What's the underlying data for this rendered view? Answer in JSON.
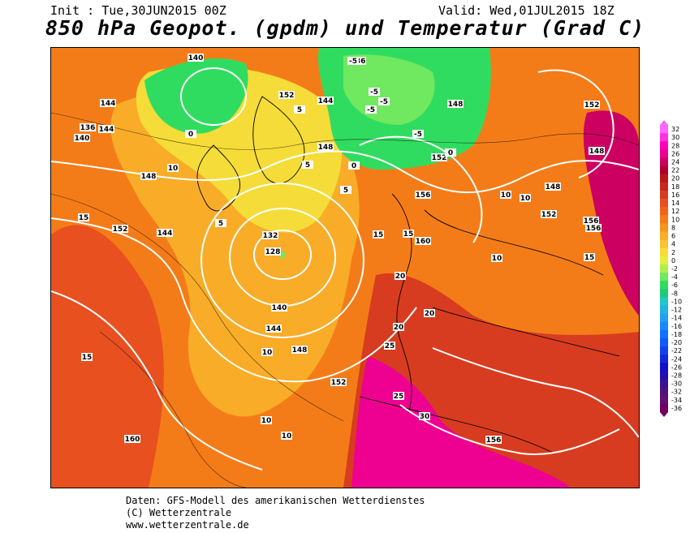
{
  "header": {
    "init": "Init : Tue,30JUN2015 00Z",
    "valid": "Valid: Wed,01JUL2015 18Z",
    "title": "850 hPa Geopot. (gpdm) und Temperatur (Grad C)"
  },
  "credits": {
    "line1": "Daten: GFS-Modell des amerikanischen Wetterdienstes",
    "line2": "(C) Wetterzentrale",
    "line3": "www.wetterzentrale.de"
  },
  "legend": {
    "unit_values": [
      "32",
      "30",
      "28",
      "26",
      "24",
      "22",
      "20",
      "18",
      "16",
      "14",
      "12",
      "10",
      "8",
      "6",
      "4",
      "2",
      "0",
      "-2",
      "-4",
      "-6",
      "-8",
      "-10",
      "-12",
      "-14",
      "-16",
      "-18",
      "-20",
      "-22",
      "-24",
      "-26",
      "-28",
      "-30",
      "-32",
      "-34",
      "-36"
    ],
    "colors": [
      "#ff66ff",
      "#ff33dd",
      "#ff00bb",
      "#ee0090",
      "#cc0060",
      "#b00030",
      "#b81818",
      "#c82820",
      "#d83c20",
      "#e85020",
      "#f06418",
      "#f47c18",
      "#f79420",
      "#f8ac28",
      "#f8c430",
      "#f5dc38",
      "#e6ec40",
      "#b0ee50",
      "#70e860",
      "#30dc60",
      "#20c878",
      "#20c8c8",
      "#20b4e0",
      "#20a0ee",
      "#1888ff",
      "#1070ff",
      "#1058ff",
      "#1040ee",
      "#1028dd",
      "#1010cc",
      "#2010b0",
      "#3a1098",
      "#501080",
      "#601070",
      "#700060"
    ]
  },
  "map_labels": {
    "geopotential": [
      "140",
      "136",
      "144",
      "152",
      "148",
      "144",
      "148",
      "152",
      "156",
      "160",
      "132",
      "128",
      "140",
      "144",
      "148",
      "152",
      "156",
      "160",
      "148",
      "152",
      "156",
      "152",
      "148",
      "144",
      "140",
      "136",
      "144",
      "148",
      "152",
      "156"
    ],
    "temperature": [
      "-5",
      "-5",
      "-5",
      "-5",
      "-5",
      "0",
      "0",
      "0",
      "5",
      "5",
      "5",
      "5",
      "10",
      "10",
      "10",
      "10",
      "15",
      "15",
      "15",
      "20",
      "20",
      "20",
      "25",
      "25",
      "30",
      "15",
      "10",
      "10",
      "10",
      "15"
    ]
  }
}
